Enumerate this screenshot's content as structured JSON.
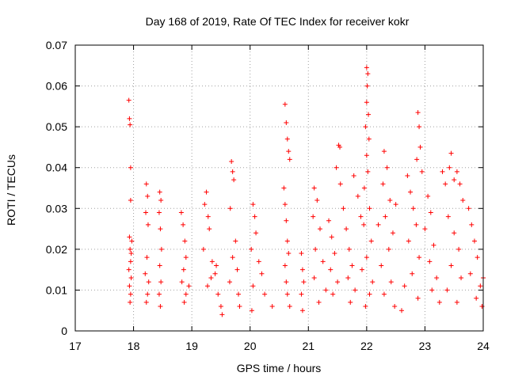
{
  "chart_data": {
    "type": "scatter",
    "title": "Day 168 of 2019, Rate Of TEC Index for receiver kokr",
    "xlabel": "GPS time / hours",
    "ylabel": "ROTI / TECUs",
    "xlim": [
      17,
      24
    ],
    "ylim": [
      0,
      0.07
    ],
    "xticks": [
      17,
      18,
      19,
      20,
      21,
      22,
      23,
      24
    ],
    "xtick_labels": [
      "17",
      "18",
      "19",
      "20",
      "21",
      "22",
      "23",
      "24"
    ],
    "yticks": [
      0,
      0.01,
      0.02,
      0.03,
      0.04,
      0.05,
      0.06,
      0.07
    ],
    "ytick_labels": [
      "0",
      "0.01",
      "0.02",
      "0.03",
      "0.04",
      "0.05",
      "0.06",
      "0.07"
    ],
    "grid": true,
    "marker": "+",
    "color": "#ff0000",
    "series": [
      {
        "name": "ROTI",
        "points": [
          [
            17.92,
            0.0565
          ],
          [
            17.93,
            0.052
          ],
          [
            17.94,
            0.0505
          ],
          [
            17.95,
            0.04
          ],
          [
            17.95,
            0.032
          ],
          [
            17.93,
            0.023
          ],
          [
            17.94,
            0.02
          ],
          [
            17.95,
            0.017
          ],
          [
            17.92,
            0.015
          ],
          [
            17.96,
            0.013
          ],
          [
            17.93,
            0.011
          ],
          [
            17.95,
            0.009
          ],
          [
            17.94,
            0.007
          ],
          [
            17.97,
            0.022
          ],
          [
            17.96,
            0.019
          ],
          [
            18.22,
            0.036
          ],
          [
            18.24,
            0.033
          ],
          [
            18.21,
            0.029
          ],
          [
            18.25,
            0.026
          ],
          [
            18.23,
            0.018
          ],
          [
            18.2,
            0.014
          ],
          [
            18.26,
            0.012
          ],
          [
            18.24,
            0.009
          ],
          [
            18.22,
            0.007
          ],
          [
            18.45,
            0.034
          ],
          [
            18.47,
            0.032
          ],
          [
            18.44,
            0.029
          ],
          [
            18.46,
            0.025
          ],
          [
            18.48,
            0.02
          ],
          [
            18.45,
            0.016
          ],
          [
            18.47,
            0.012
          ],
          [
            18.44,
            0.009
          ],
          [
            18.46,
            0.006
          ],
          [
            18.82,
            0.029
          ],
          [
            18.85,
            0.026
          ],
          [
            18.88,
            0.022
          ],
          [
            18.9,
            0.018
          ],
          [
            18.86,
            0.015
          ],
          [
            18.83,
            0.012
          ],
          [
            18.9,
            0.009
          ],
          [
            18.87,
            0.007
          ],
          [
            18.95,
            0.011
          ],
          [
            19.25,
            0.034
          ],
          [
            19.22,
            0.031
          ],
          [
            19.28,
            0.028
          ],
          [
            19.3,
            0.025
          ],
          [
            19.2,
            0.02
          ],
          [
            19.35,
            0.017
          ],
          [
            19.4,
            0.014
          ],
          [
            19.27,
            0.011
          ],
          [
            19.45,
            0.009
          ],
          [
            19.5,
            0.006
          ],
          [
            19.52,
            0.004
          ],
          [
            19.33,
            0.013
          ],
          [
            19.42,
            0.016
          ],
          [
            19.68,
            0.0415
          ],
          [
            19.7,
            0.039
          ],
          [
            19.72,
            0.037
          ],
          [
            19.66,
            0.03
          ],
          [
            19.75,
            0.022
          ],
          [
            19.7,
            0.018
          ],
          [
            19.78,
            0.015
          ],
          [
            19.65,
            0.012
          ],
          [
            19.8,
            0.009
          ],
          [
            19.82,
            0.006
          ],
          [
            20.05,
            0.031
          ],
          [
            20.08,
            0.028
          ],
          [
            20.1,
            0.024
          ],
          [
            20.02,
            0.02
          ],
          [
            20.15,
            0.017
          ],
          [
            20.2,
            0.014
          ],
          [
            20.05,
            0.011
          ],
          [
            20.25,
            0.009
          ],
          [
            20.03,
            0.005
          ],
          [
            20.38,
            0.006
          ],
          [
            20.6,
            0.0555
          ],
          [
            20.62,
            0.051
          ],
          [
            20.64,
            0.047
          ],
          [
            20.66,
            0.044
          ],
          [
            20.68,
            0.042
          ],
          [
            20.58,
            0.035
          ],
          [
            20.6,
            0.031
          ],
          [
            20.62,
            0.027
          ],
          [
            20.64,
            0.022
          ],
          [
            20.66,
            0.019
          ],
          [
            20.6,
            0.016
          ],
          [
            20.62,
            0.012
          ],
          [
            20.64,
            0.009
          ],
          [
            20.68,
            0.006
          ],
          [
            20.88,
            0.019
          ],
          [
            20.9,
            0.015
          ],
          [
            20.92,
            0.012
          ],
          [
            20.88,
            0.009
          ],
          [
            20.9,
            0.005
          ],
          [
            21.1,
            0.035
          ],
          [
            21.15,
            0.032
          ],
          [
            21.08,
            0.028
          ],
          [
            21.2,
            0.025
          ],
          [
            21.12,
            0.02
          ],
          [
            21.25,
            0.017
          ],
          [
            21.1,
            0.013
          ],
          [
            21.3,
            0.01
          ],
          [
            21.18,
            0.007
          ],
          [
            21.35,
            0.027
          ],
          [
            21.4,
            0.023
          ],
          [
            21.45,
            0.019
          ],
          [
            21.38,
            0.015
          ],
          [
            21.5,
            0.012
          ],
          [
            21.42,
            0.009
          ],
          [
            21.52,
            0.0455
          ],
          [
            21.54,
            0.045
          ],
          [
            21.48,
            0.04
          ],
          [
            21.55,
            0.036
          ],
          [
            21.6,
            0.03
          ],
          [
            21.65,
            0.025
          ],
          [
            21.7,
            0.02
          ],
          [
            21.75,
            0.016
          ],
          [
            21.68,
            0.013
          ],
          [
            21.8,
            0.01
          ],
          [
            21.72,
            0.007
          ],
          [
            21.78,
            0.038
          ],
          [
            21.85,
            0.033
          ],
          [
            21.9,
            0.028
          ],
          [
            22.0,
            0.0645
          ],
          [
            22.02,
            0.063
          ],
          [
            22.01,
            0.06
          ],
          [
            22.0,
            0.056
          ],
          [
            22.03,
            0.053
          ],
          [
            21.98,
            0.05
          ],
          [
            22.04,
            0.047
          ],
          [
            22.0,
            0.043
          ],
          [
            22.02,
            0.039
          ],
          [
            21.96,
            0.035
          ],
          [
            22.05,
            0.03
          ],
          [
            21.95,
            0.026
          ],
          [
            22.08,
            0.022
          ],
          [
            22.0,
            0.018
          ],
          [
            21.92,
            0.015
          ],
          [
            22.1,
            0.012
          ],
          [
            22.05,
            0.009
          ],
          [
            21.98,
            0.006
          ],
          [
            22.3,
            0.044
          ],
          [
            22.35,
            0.04
          ],
          [
            22.28,
            0.036
          ],
          [
            22.4,
            0.032
          ],
          [
            22.32,
            0.028
          ],
          [
            22.45,
            0.024
          ],
          [
            22.38,
            0.02
          ],
          [
            22.25,
            0.016
          ],
          [
            22.42,
            0.012
          ],
          [
            22.3,
            0.009
          ],
          [
            22.48,
            0.006
          ],
          [
            22.5,
            0.031
          ],
          [
            22.2,
            0.026
          ],
          [
            22.7,
            0.038
          ],
          [
            22.75,
            0.034
          ],
          [
            22.8,
            0.03
          ],
          [
            22.85,
            0.026
          ],
          [
            22.72,
            0.022
          ],
          [
            22.9,
            0.018
          ],
          [
            22.78,
            0.014
          ],
          [
            22.65,
            0.011
          ],
          [
            22.88,
            0.008
          ],
          [
            22.6,
            0.005
          ],
          [
            22.88,
            0.0535
          ],
          [
            22.9,
            0.05
          ],
          [
            22.92,
            0.045
          ],
          [
            22.86,
            0.042
          ],
          [
            22.95,
            0.039
          ],
          [
            23.05,
            0.033
          ],
          [
            23.1,
            0.029
          ],
          [
            23.0,
            0.025
          ],
          [
            23.15,
            0.021
          ],
          [
            23.08,
            0.017
          ],
          [
            23.2,
            0.013
          ],
          [
            23.12,
            0.01
          ],
          [
            23.25,
            0.007
          ],
          [
            23.3,
            0.039
          ],
          [
            23.35,
            0.036
          ],
          [
            23.45,
            0.0435
          ],
          [
            23.42,
            0.04
          ],
          [
            23.5,
            0.037
          ],
          [
            23.55,
            0.039
          ],
          [
            23.6,
            0.036
          ],
          [
            23.65,
            0.032
          ],
          [
            23.4,
            0.028
          ],
          [
            23.5,
            0.024
          ],
          [
            23.58,
            0.02
          ],
          [
            23.45,
            0.016
          ],
          [
            23.62,
            0.013
          ],
          [
            23.38,
            0.01
          ],
          [
            23.55,
            0.007
          ],
          [
            23.75,
            0.03
          ],
          [
            23.8,
            0.026
          ],
          [
            23.85,
            0.022
          ],
          [
            23.9,
            0.018
          ],
          [
            23.78,
            0.014
          ],
          [
            23.95,
            0.011
          ],
          [
            23.88,
            0.008
          ],
          [
            23.98,
            0.006
          ],
          [
            24.0,
            0.013
          ]
        ]
      }
    ]
  }
}
